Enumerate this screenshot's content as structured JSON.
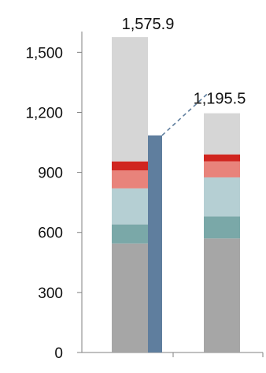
{
  "chart_data": {
    "type": "bar",
    "stacked": true,
    "categories": [
      "",
      ""
    ],
    "y_ticks": [
      "0",
      "300",
      "600",
      "900",
      "1,200",
      "1,500"
    ],
    "y_tick_values": [
      0,
      300,
      600,
      900,
      1200,
      1500
    ],
    "ylim": [
      0,
      1650
    ],
    "grid": false,
    "legend": "none",
    "stack_series": [
      {
        "color": "#a6a6a6",
        "values": [
          545,
          570
        ]
      },
      {
        "color": "#7aa8a8",
        "values": [
          95,
          110
        ]
      },
      {
        "color": "#b5cfd3",
        "values": [
          180,
          195
        ]
      },
      {
        "color": "#e8837b",
        "values": [
          90,
          80
        ]
      },
      {
        "color": "#d0251f",
        "values": [
          45,
          35
        ]
      },
      {
        "color": "#d6d6d6",
        "values": [
          620.9,
          205.5
        ]
      }
    ],
    "totals": [
      1575.9,
      1195.5
    ],
    "total_labels": [
      "1,575.9",
      "1,195.5"
    ],
    "overlay_bar": {
      "category_index": 0,
      "value": 1085,
      "color": "#5f7e9e"
    },
    "connector": {
      "style": "dashed",
      "color": "#5f7e9e",
      "from": "overlay_bar_top",
      "to": "total_1"
    }
  }
}
